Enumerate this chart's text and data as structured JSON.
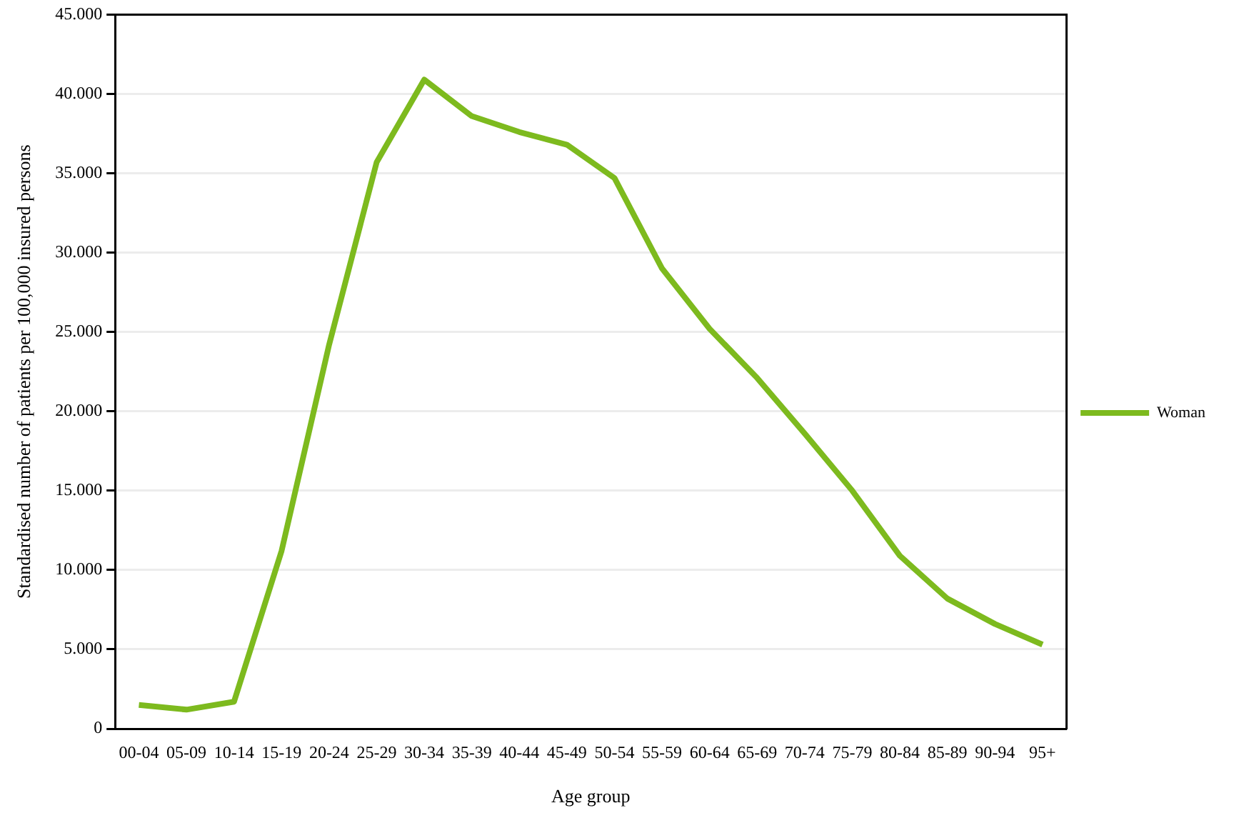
{
  "chart_data": {
    "type": "line",
    "xlabel": "Age group",
    "ylabel": "Standardised number of patients per 100,000 insured persons",
    "categories": [
      "00-04",
      "05-09",
      "10-14",
      "15-19",
      "20-24",
      "25-29",
      "30-34",
      "35-39",
      "40-44",
      "45-49",
      "50-54",
      "55-59",
      "60-64",
      "65-69",
      "70-74",
      "75-79",
      "80-84",
      "85-89",
      "90-94",
      "95+"
    ],
    "series": [
      {
        "name": "Woman",
        "color": "#7dba1e",
        "values": [
          1500,
          1200,
          1700,
          11200,
          24200,
          35700,
          40900,
          38600,
          37600,
          36800,
          34700,
          29000,
          25200,
          22100,
          18600,
          15000,
          10900,
          8200,
          6600,
          5300
        ]
      }
    ],
    "ylim": [
      0,
      45000
    ],
    "yticks": [
      {
        "value": 0,
        "label": "0"
      },
      {
        "value": 5000,
        "label": "5.000"
      },
      {
        "value": 10000,
        "label": "10.000"
      },
      {
        "value": 15000,
        "label": "15.000"
      },
      {
        "value": 20000,
        "label": "20.000"
      },
      {
        "value": 25000,
        "label": "25.000"
      },
      {
        "value": 30000,
        "label": "30.000"
      },
      {
        "value": 35000,
        "label": "35.000"
      },
      {
        "value": 40000,
        "label": "40.000"
      },
      {
        "value": 45000,
        "label": "45.000"
      }
    ],
    "grid": "y",
    "legend": "right",
    "marker": "none",
    "line_style": "solid"
  }
}
